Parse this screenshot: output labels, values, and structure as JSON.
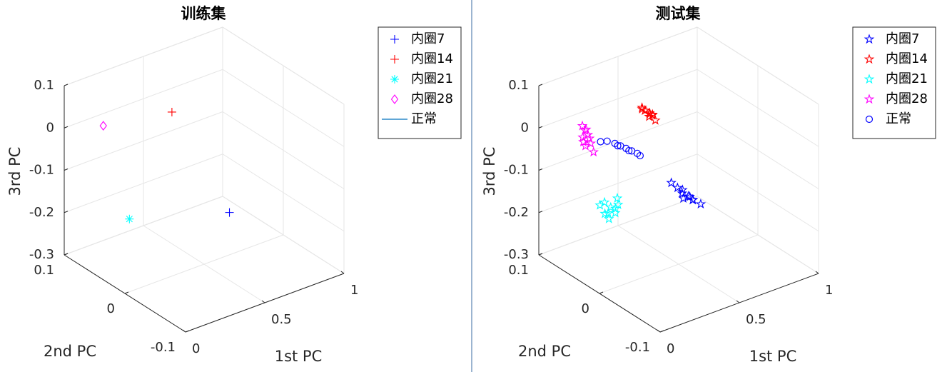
{
  "chart_data": [
    {
      "type": "scatter3d",
      "title": "训练集",
      "xlabel": "1st PC",
      "ylabel": "2nd PC",
      "zlabel": "3rd PC",
      "xlim": [
        0,
        1
      ],
      "ylim": [
        -0.1,
        0.1
      ],
      "zlim": [
        -0.3,
        0.1
      ],
      "xticks": [
        0,
        0.5,
        1
      ],
      "yticks": [
        -0.1,
        0,
        0.1
      ],
      "zticks": [
        -0.3,
        -0.2,
        -0.1,
        0,
        0.1
      ],
      "grid": true,
      "legend": "upper right",
      "series": [
        {
          "name": "内圈7",
          "color": "#0000ff",
          "marker": "plus",
          "x": [
            0.66
          ],
          "y": [
            0.0
          ],
          "z": [
            -0.2
          ]
        },
        {
          "name": "内圈14",
          "color": "#ff0000",
          "marker": "plus",
          "x": [
            0.45
          ],
          "y": [
            0.04
          ],
          "z": [
            0.03
          ]
        },
        {
          "name": "内圈21",
          "color": "#00ffff",
          "marker": "asterisk",
          "x": [
            0.22
          ],
          "y": [
            0.05
          ],
          "z": [
            -0.2
          ]
        },
        {
          "name": "内圈28",
          "color": "#ff00ff",
          "marker": "diamond",
          "x": [
            0.17
          ],
          "y": [
            0.08
          ],
          "z": [
            0.0
          ]
        },
        {
          "name": "正常",
          "color": "#0072bd",
          "marker": "line",
          "x": [],
          "y": [],
          "z": []
        }
      ]
    },
    {
      "type": "scatter3d",
      "title": "测试集",
      "xlabel": "1st PC",
      "ylabel": "2nd PC",
      "zlabel": "3rd PC",
      "xlim": [
        0,
        1
      ],
      "ylim": [
        -0.1,
        0.1
      ],
      "zlim": [
        -0.3,
        0.1
      ],
      "xticks": [
        0,
        0.5,
        1
      ],
      "yticks": [
        -0.1,
        0,
        0.1
      ],
      "zticks": [
        -0.3,
        -0.2,
        -0.1,
        0,
        0.1
      ],
      "grid": true,
      "legend": "upper right",
      "series": [
        {
          "name": "内圈7",
          "color": "#0000ff",
          "marker": "pentagram",
          "x": [
            0.53,
            0.55,
            0.56,
            0.57,
            0.58,
            0.56,
            0.59,
            0.6,
            0.62,
            0.57
          ],
          "y": [
            0.02,
            0.015,
            0.01,
            0.012,
            0.005,
            0.008,
            0.0,
            0.003,
            -0.005,
            0.0
          ],
          "z": [
            -0.13,
            -0.14,
            -0.15,
            -0.145,
            -0.155,
            -0.16,
            -0.16,
            -0.165,
            -0.17,
            -0.15
          ]
        },
        {
          "name": "内圈14",
          "color": "#ff0000",
          "marker": "pentagram",
          "x": [
            0.44,
            0.45,
            0.46,
            0.47,
            0.45,
            0.43,
            0.46,
            0.48,
            0.44,
            0.46
          ],
          "y": [
            0.04,
            0.035,
            0.045,
            0.04,
            0.03,
            0.042,
            0.05,
            0.038,
            0.033,
            0.028
          ],
          "z": [
            0.035,
            0.03,
            0.028,
            0.025,
            0.032,
            0.038,
            0.03,
            0.022,
            0.027,
            0.02
          ]
        },
        {
          "name": "内圈21",
          "color": "#00ffff",
          "marker": "pentagram",
          "x": [
            0.3,
            0.32,
            0.33,
            0.31,
            0.34,
            0.29,
            0.35,
            0.32,
            0.3,
            0.33
          ],
          "y": [
            0.07,
            0.065,
            0.06,
            0.072,
            0.058,
            0.075,
            0.062,
            0.068,
            0.064,
            0.06
          ],
          "z": [
            -0.19,
            -0.2,
            -0.21,
            -0.22,
            -0.19,
            -0.2,
            -0.18,
            -0.23,
            -0.21,
            -0.2
          ]
        },
        {
          "name": "内圈28",
          "color": "#ff00ff",
          "marker": "pentagram",
          "x": [
            0.16,
            0.17,
            0.18,
            0.17,
            0.19,
            0.18,
            0.2,
            0.19,
            0.18,
            0.17
          ],
          "y": [
            0.07,
            0.068,
            0.066,
            0.072,
            0.064,
            0.07,
            0.062,
            0.066,
            0.069,
            0.071
          ],
          "z": [
            0.01,
            0.0,
            -0.01,
            -0.02,
            -0.03,
            -0.04,
            -0.05,
            -0.02,
            0.0,
            -0.03
          ]
        },
        {
          "name": "正常",
          "color": "#0000ff",
          "marker": "circle",
          "x": [
            0.16,
            0.19,
            0.22,
            0.24,
            0.26,
            0.28,
            0.3,
            0.31,
            0.27,
            0.23
          ],
          "y": [
            0.04,
            0.037,
            0.032,
            0.028,
            0.024,
            0.02,
            0.016,
            0.014,
            0.022,
            0.03
          ],
          "z": [
            0.0,
            0.0,
            -0.005,
            -0.01,
            -0.015,
            -0.02,
            -0.025,
            -0.03,
            -0.02,
            -0.01
          ]
        }
      ]
    }
  ]
}
